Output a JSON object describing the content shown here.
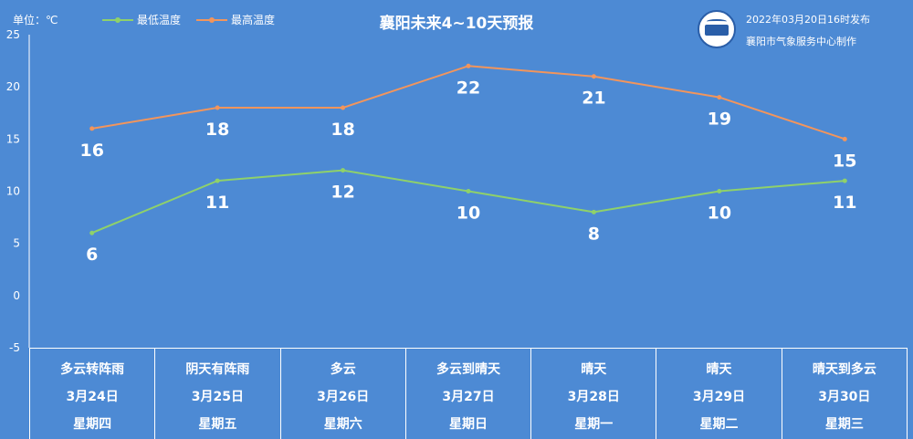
{
  "header": {
    "unit": "单位：℃",
    "title": "襄阳未来4~10天预报",
    "publish_time": "2022年03月20日16时发布",
    "publisher": "襄阳市气象服务中心制作"
  },
  "colors": {
    "background": "#4d8ad4",
    "low": "#8fd16a",
    "high": "#f2955c"
  },
  "chart_data": {
    "type": "line",
    "title": "襄阳未来4~10天预报",
    "ylabel": "单位：℃",
    "ylim": [
      -5,
      25
    ],
    "yticks": [
      25,
      20,
      15,
      10,
      5,
      0,
      -5
    ],
    "categories": [
      "3月24日",
      "3月25日",
      "3月26日",
      "3月27日",
      "3月28日",
      "3月29日",
      "3月30日"
    ],
    "series": [
      {
        "name": "最低温度",
        "values": [
          6,
          11,
          12,
          10,
          8,
          10,
          11
        ]
      },
      {
        "name": "最高温度",
        "values": [
          16,
          18,
          18,
          22,
          21,
          19,
          15
        ]
      }
    ],
    "legend": "top-left",
    "grid": false
  },
  "forecast": [
    {
      "weather": "多云转阵雨",
      "date": "3月24日",
      "weekday": "星期四"
    },
    {
      "weather": "阴天有阵雨",
      "date": "3月25日",
      "weekday": "星期五"
    },
    {
      "weather": "多云",
      "date": "3月26日",
      "weekday": "星期六"
    },
    {
      "weather": "多云到晴天",
      "date": "3月27日",
      "weekday": "星期日"
    },
    {
      "weather": "晴天",
      "date": "3月28日",
      "weekday": "星期一"
    },
    {
      "weather": "晴天",
      "date": "3月29日",
      "weekday": "星期二"
    },
    {
      "weather": "晴天到多云",
      "date": "3月30日",
      "weekday": "星期三"
    }
  ]
}
